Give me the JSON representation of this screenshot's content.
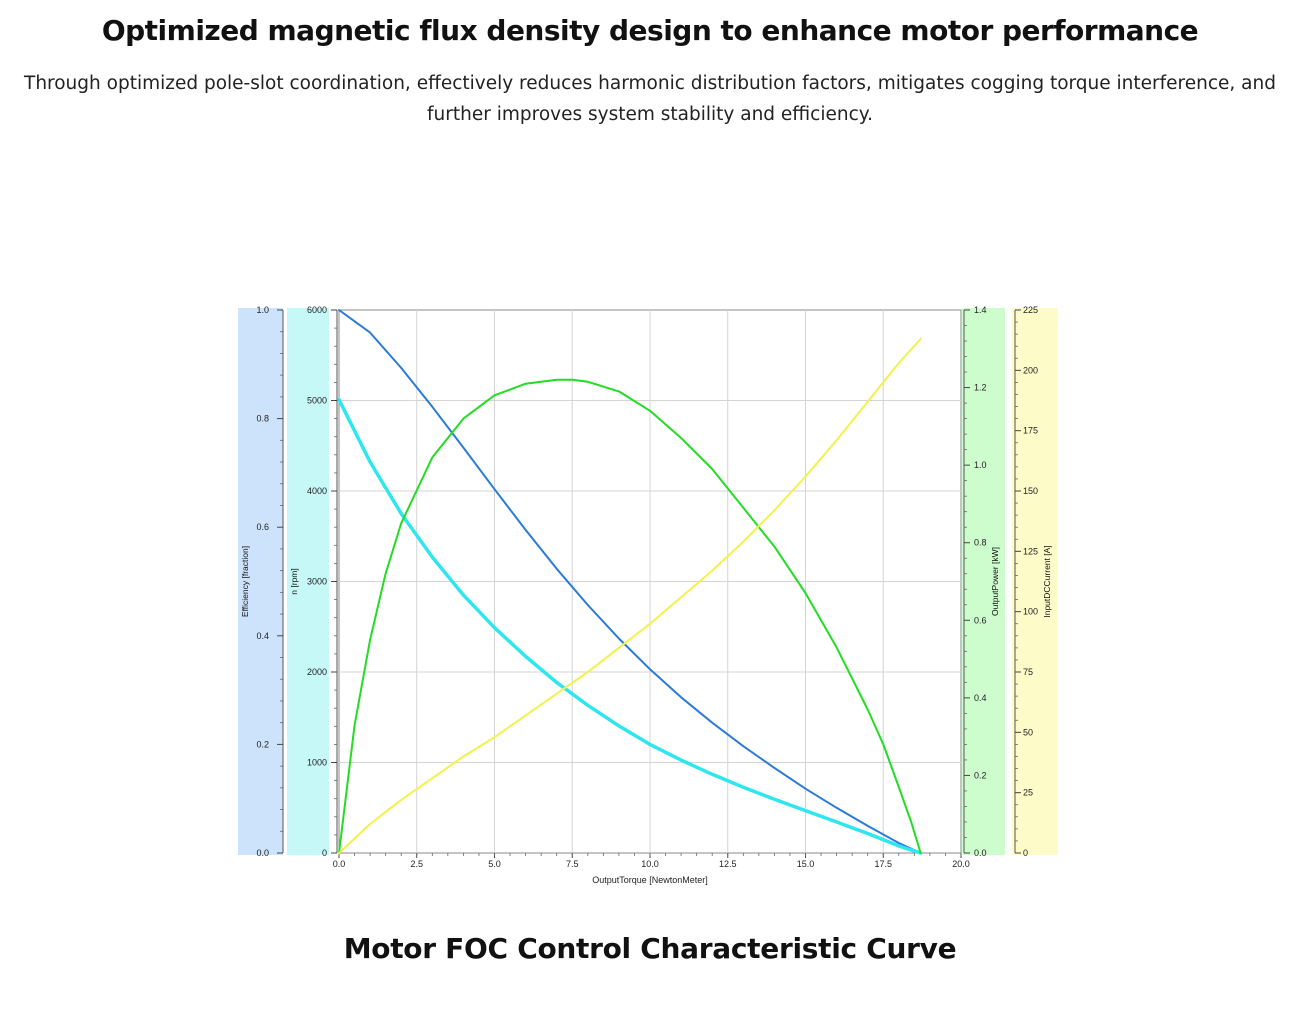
{
  "header": {
    "title": "Optimized magnetic flux density design to enhance motor performance",
    "description": "Through optimized pole-slot coordination, effectively reduces harmonic distribution factors, mitigates cogging torque interference, and further improves system stability and efficiency."
  },
  "caption": "Motor FOC Control Characteristic Curve",
  "chart_data": {
    "type": "line",
    "xlabel": "OutputTorque [NewtonMeter]",
    "xlim": [
      0,
      20
    ],
    "x_ticks": [
      "0.0",
      "2.5",
      "5.0",
      "7.5",
      "10.0",
      "12.5",
      "15.0",
      "17.5",
      "20.0"
    ],
    "grid": true,
    "axes": [
      {
        "id": "efficiency",
        "label": "Efficiency [fraction]",
        "ylim": [
          0,
          1
        ],
        "ticks": [
          "0.0",
          "0.2",
          "0.4",
          "0.6",
          "0.8",
          "1.0"
        ],
        "band_color": "#cde3fb",
        "side": "left"
      },
      {
        "id": "speed",
        "label": "n [rpm]",
        "ylim": [
          0,
          6000
        ],
        "ticks": [
          "0",
          "1000",
          "2000",
          "3000",
          "4000",
          "5000",
          "6000"
        ],
        "band_color": "#c6f8f8",
        "side": "left"
      },
      {
        "id": "power",
        "label": "OutputPower [kW]",
        "ylim": [
          0,
          1.4
        ],
        "ticks": [
          "0.0",
          "0.2",
          "0.4",
          "0.6",
          "0.8",
          "1.0",
          "1.2",
          "1.4"
        ],
        "band_color": "#cdfccd",
        "side": "right"
      },
      {
        "id": "current",
        "label": "InputDCCurrent [A]",
        "ylim": [
          0,
          225
        ],
        "ticks": [
          "0",
          "25",
          "50",
          "75",
          "100",
          "125",
          "150",
          "175",
          "200",
          "225"
        ],
        "band_color": "#fdfcc8",
        "side": "right"
      }
    ],
    "series": [
      {
        "axis": "speed",
        "color": "#2a7bd8",
        "width": 2,
        "x": [
          0,
          1,
          2,
          3,
          4,
          5,
          6,
          7,
          8,
          9,
          10,
          11,
          12,
          13,
          14,
          15,
          16,
          17,
          18,
          18.7
        ],
        "values": [
          6000,
          5750,
          5360,
          4930,
          4480,
          4020,
          3570,
          3140,
          2740,
          2370,
          2030,
          1720,
          1440,
          1180,
          940,
          710,
          500,
          300,
          110,
          0
        ]
      },
      {
        "axis": "efficiency",
        "color": "#2ee6ee",
        "width": 3.5,
        "x": [
          0,
          1,
          2,
          3,
          4,
          5,
          6,
          7,
          8,
          9,
          10,
          11,
          12,
          13,
          14,
          15,
          16,
          17,
          18,
          18.7
        ],
        "values": [
          0.835,
          0.72,
          0.625,
          0.545,
          0.475,
          0.415,
          0.362,
          0.314,
          0.272,
          0.234,
          0.2,
          0.171,
          0.145,
          0.121,
          0.099,
          0.078,
          0.057,
          0.036,
          0.013,
          0
        ]
      },
      {
        "axis": "power",
        "color": "#22dd22",
        "width": 2,
        "x": [
          0,
          0.5,
          1,
          1.5,
          2,
          3,
          4,
          5,
          6,
          7,
          7.5,
          8,
          9,
          10,
          11,
          12,
          13,
          14,
          15,
          16,
          17,
          17.5,
          18,
          18.4,
          18.7
        ],
        "values": [
          0,
          0.33,
          0.55,
          0.72,
          0.85,
          1.02,
          1.12,
          1.18,
          1.21,
          1.22,
          1.22,
          1.215,
          1.19,
          1.14,
          1.07,
          0.99,
          0.89,
          0.79,
          0.67,
          0.53,
          0.37,
          0.28,
          0.17,
          0.08,
          0
        ]
      },
      {
        "axis": "current",
        "color": "#f2f24a",
        "width": 2,
        "x": [
          0,
          1,
          2,
          3,
          4,
          5,
          6,
          7,
          8,
          9,
          10,
          11,
          12,
          13,
          14,
          15,
          16,
          17,
          18,
          18.7
        ],
        "values": [
          0,
          12,
          22,
          31,
          40,
          48,
          57,
          66,
          75,
          85,
          95,
          106,
          117,
          129,
          142,
          156,
          171,
          187,
          203,
          213
        ]
      }
    ]
  }
}
